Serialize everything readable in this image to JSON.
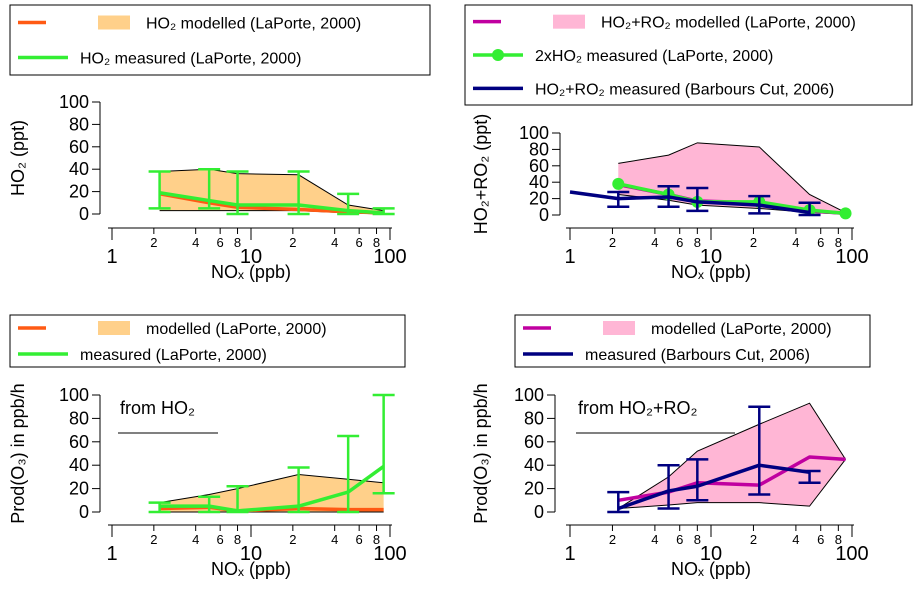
{
  "chart_data": [
    {
      "type": "line",
      "xlabel": "NOₓ (ppb)",
      "ylabel": "HO₂ (ppt)",
      "log_x": true,
      "xlim": [
        1,
        100
      ],
      "ylim": [
        0,
        100
      ],
      "xticks": [
        1,
        2,
        4,
        6,
        8,
        10,
        {
          "value": 20,
          "label": "2"
        },
        {
          "value": 40,
          "label": "4"
        },
        {
          "value": 60,
          "label": "6"
        },
        {
          "value": 80,
          "label": "8"
        },
        100
      ],
      "yticks": [
        0,
        20,
        40,
        60,
        80,
        100
      ],
      "x": [
        2.2,
        5,
        8,
        22,
        50,
        90
      ],
      "series": [
        {
          "name": "HO₂ modelled (LaPorte, 2000)",
          "color": "#ff5a14",
          "band_color": "#ffd08a",
          "values": [
            18,
            10,
            6,
            4,
            2,
            1
          ],
          "upper": [
            38,
            40,
            36,
            35,
            8,
            3
          ],
          "lower": [
            3,
            3,
            3,
            3,
            1,
            0
          ]
        },
        {
          "name": "HO₂ measured (LaPorte, 2000)",
          "color": "#33ee33",
          "values": [
            19,
            12,
            8,
            8,
            3,
            1
          ],
          "low": [
            5,
            5,
            0,
            0,
            0,
            0
          ],
          "high": [
            38,
            40,
            38,
            38,
            18,
            5
          ]
        }
      ]
    },
    {
      "type": "line",
      "xlabel": "NOₓ (ppb)",
      "ylabel": "HO₂+RO₂ (ppt)",
      "log_x": true,
      "xlim": [
        1,
        100
      ],
      "ylim": [
        0,
        100
      ],
      "xticks": [
        1,
        2,
        4,
        6,
        8,
        10,
        {
          "value": 20,
          "label": "2"
        },
        {
          "value": 40,
          "label": "4"
        },
        {
          "value": 60,
          "label": "6"
        },
        {
          "value": 80,
          "label": "8"
        },
        100
      ],
      "yticks": [
        0,
        20,
        40,
        60,
        80,
        100
      ],
      "x": [
        2.2,
        5,
        8,
        22,
        50,
        90
      ],
      "series": [
        {
          "name": "HO₂+RO₂ modelled (LaPorte, 2000)",
          "color": "#c000a0",
          "band_color": "#ffb6d5",
          "values": [
            37,
            25,
            17,
            15,
            5,
            2
          ],
          "upper": [
            63,
            73,
            88,
            83,
            25,
            3
          ],
          "lower": [
            25,
            18,
            12,
            8,
            3,
            1
          ]
        },
        {
          "name": "2xHO₂ measured (LaPorte, 2000)",
          "color": "#33ee33",
          "markers": true,
          "values": [
            38,
            25,
            16,
            16,
            6,
            2
          ]
        },
        {
          "name": "HO₂+RO₂ measured (Barbours Cut, 2006)",
          "color": "#000080",
          "x": [
            1,
            2.2,
            5,
            8,
            22,
            50
          ],
          "values": [
            28,
            20,
            22,
            16,
            12,
            3
          ],
          "low": [
            null,
            10,
            10,
            5,
            2,
            0
          ],
          "high": [
            null,
            28,
            35,
            33,
            23,
            15
          ]
        }
      ]
    },
    {
      "type": "line",
      "xlabel": "NOₓ (ppb)",
      "ylabel": "Prod(O₃) in ppb/h",
      "annotation": "from HO₂",
      "log_x": true,
      "xlim": [
        1,
        100
      ],
      "ylim": [
        0,
        100
      ],
      "xticks": [
        1,
        2,
        4,
        6,
        8,
        10,
        {
          "value": 20,
          "label": "2"
        },
        {
          "value": 40,
          "label": "4"
        },
        {
          "value": 60,
          "label": "6"
        },
        {
          "value": 80,
          "label": "8"
        },
        100
      ],
      "yticks": [
        0,
        20,
        40,
        60,
        80,
        100
      ],
      "x": [
        2.2,
        5,
        8,
        22,
        50,
        90
      ],
      "series": [
        {
          "name": "modelled (LaPorte, 2000)",
          "color": "#ff5a14",
          "band_color": "#ffd08a",
          "values": [
            3,
            4,
            1,
            3,
            2,
            2
          ],
          "upper": [
            8,
            15,
            20,
            32,
            28,
            25
          ],
          "lower": [
            0,
            0,
            0,
            0,
            0,
            0
          ]
        },
        {
          "name": "measured (LaPorte, 2000)",
          "color": "#33ee33",
          "values": [
            5,
            5,
            1,
            5,
            17,
            39
          ],
          "low": [
            0,
            0,
            0,
            0,
            0,
            16
          ],
          "high": [
            8,
            13,
            22,
            38,
            65,
            100
          ]
        }
      ]
    },
    {
      "type": "line",
      "xlabel": "NOₓ (ppb)",
      "ylabel": "Prod(O₃) in ppb/h",
      "annotation": "from HO₂+RO₂",
      "log_x": true,
      "xlim": [
        1,
        100
      ],
      "ylim": [
        0,
        100
      ],
      "xticks": [
        1,
        2,
        4,
        6,
        8,
        10,
        {
          "value": 20,
          "label": "2"
        },
        {
          "value": 40,
          "label": "4"
        },
        {
          "value": 60,
          "label": "6"
        },
        {
          "value": 80,
          "label": "8"
        },
        100
      ],
      "yticks": [
        0,
        20,
        40,
        60,
        80,
        100
      ],
      "x": [
        2.2,
        5,
        8,
        22,
        50,
        90
      ],
      "series": [
        {
          "name": "modelled (LaPorte, 2000)",
          "color": "#c000a0",
          "band_color": "#ffb6d5",
          "values": [
            10,
            17,
            25,
            23,
            47,
            45
          ],
          "upper": [
            3,
            30,
            52,
            75,
            93,
            45
          ],
          "lower": [
            3,
            6,
            8,
            8,
            5,
            45
          ]
        },
        {
          "name": "measured (Barbours Cut, 2006)",
          "color": "#000080",
          "x": [
            2.2,
            5,
            8,
            22,
            50
          ],
          "values": [
            3,
            18,
            22,
            40,
            34
          ],
          "low": [
            0,
            3,
            10,
            15,
            25
          ],
          "high": [
            17,
            40,
            45,
            90,
            35
          ]
        }
      ]
    }
  ]
}
